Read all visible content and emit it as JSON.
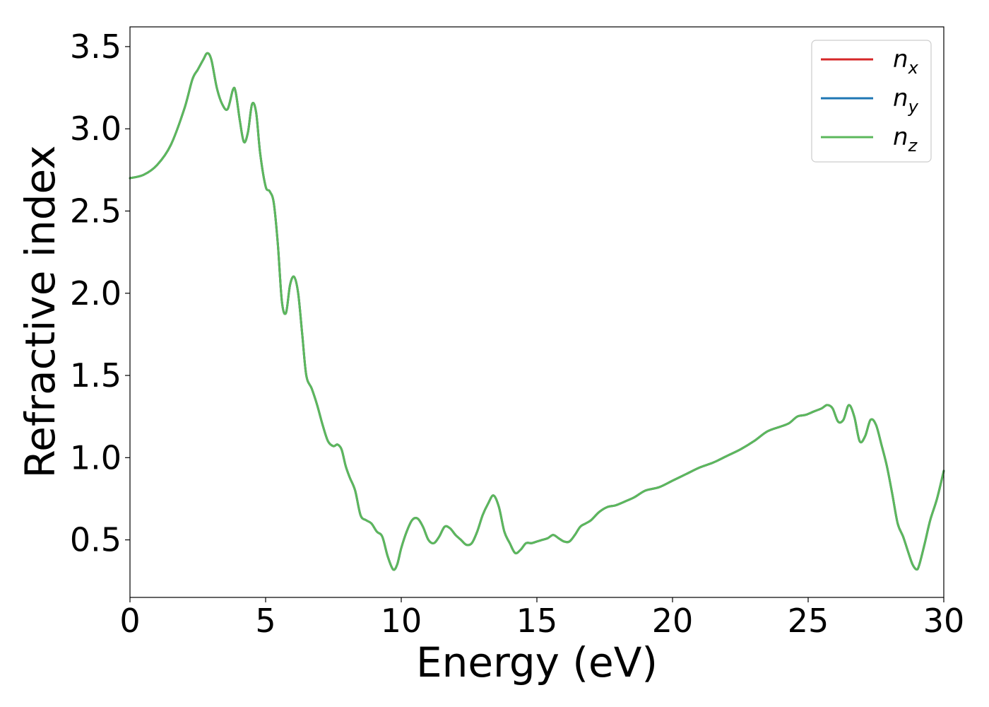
{
  "chart_data": {
    "type": "line",
    "title": "",
    "xlabel": "Energy (eV)",
    "ylabel": "Refractive index",
    "xlim": [
      0,
      30
    ],
    "ylim": [
      0.15,
      3.62
    ],
    "xticks": [
      0,
      5,
      10,
      15,
      20,
      25,
      30
    ],
    "xtick_labels": [
      "0",
      "5",
      "10",
      "15",
      "20",
      "25",
      "30"
    ],
    "yticks": [
      0.5,
      1.0,
      1.5,
      2.0,
      2.5,
      3.0,
      3.5
    ],
    "ytick_labels": [
      "0.5",
      "1.0",
      "1.5",
      "2.0",
      "2.5",
      "3.0",
      "3.5"
    ],
    "grid": false,
    "legend_position": "top-right",
    "x": [
      0,
      0.5,
      1.0,
      1.5,
      2.0,
      2.3,
      2.5,
      2.7,
      2.85,
      3.0,
      3.2,
      3.4,
      3.6,
      3.8,
      3.9,
      4.05,
      4.2,
      4.35,
      4.5,
      4.65,
      4.8,
      5.0,
      5.15,
      5.3,
      5.45,
      5.6,
      5.75,
      5.9,
      6.05,
      6.2,
      6.35,
      6.5,
      6.7,
      6.9,
      7.1,
      7.3,
      7.5,
      7.65,
      7.8,
      7.95,
      8.1,
      8.3,
      8.5,
      8.7,
      8.9,
      9.1,
      9.3,
      9.5,
      9.7,
      9.85,
      10.0,
      10.2,
      10.4,
      10.6,
      10.8,
      11.0,
      11.2,
      11.4,
      11.6,
      11.8,
      12.0,
      12.2,
      12.4,
      12.6,
      12.8,
      13.0,
      13.2,
      13.4,
      13.6,
      13.8,
      14.0,
      14.2,
      14.4,
      14.6,
      14.8,
      15.0,
      15.2,
      15.4,
      15.6,
      15.8,
      16.0,
      16.2,
      16.4,
      16.6,
      16.8,
      17.0,
      17.3,
      17.6,
      17.9,
      18.2,
      18.6,
      19.0,
      19.5,
      20.0,
      20.5,
      21.0,
      21.5,
      22.0,
      22.5,
      23.0,
      23.5,
      24.0,
      24.3,
      24.6,
      24.9,
      25.2,
      25.5,
      25.7,
      25.9,
      26.1,
      26.3,
      26.5,
      26.7,
      26.9,
      27.1,
      27.3,
      27.5,
      27.7,
      27.9,
      28.1,
      28.3,
      28.5,
      28.7,
      28.85,
      29.0,
      29.1,
      29.3,
      29.5,
      29.75,
      30.0
    ],
    "series": [
      {
        "name": "x",
        "color": "#d62728",
        "values": [
          2.7,
          2.72,
          2.78,
          2.9,
          3.12,
          3.3,
          3.36,
          3.42,
          3.46,
          3.42,
          3.25,
          3.15,
          3.12,
          3.24,
          3.22,
          3.05,
          2.92,
          2.98,
          3.15,
          3.1,
          2.85,
          2.65,
          2.62,
          2.55,
          2.3,
          1.95,
          1.88,
          2.05,
          2.1,
          2.0,
          1.75,
          1.5,
          1.42,
          1.32,
          1.2,
          1.1,
          1.07,
          1.08,
          1.05,
          0.95,
          0.88,
          0.8,
          0.65,
          0.62,
          0.6,
          0.55,
          0.52,
          0.4,
          0.32,
          0.35,
          0.45,
          0.55,
          0.62,
          0.63,
          0.58,
          0.5,
          0.48,
          0.52,
          0.58,
          0.57,
          0.53,
          0.5,
          0.47,
          0.48,
          0.55,
          0.65,
          0.72,
          0.77,
          0.7,
          0.55,
          0.48,
          0.42,
          0.44,
          0.48,
          0.48,
          0.49,
          0.5,
          0.51,
          0.53,
          0.51,
          0.49,
          0.49,
          0.53,
          0.58,
          0.6,
          0.62,
          0.67,
          0.7,
          0.71,
          0.73,
          0.76,
          0.8,
          0.82,
          0.86,
          0.9,
          0.94,
          0.97,
          1.01,
          1.05,
          1.1,
          1.16,
          1.19,
          1.21,
          1.25,
          1.26,
          1.28,
          1.3,
          1.32,
          1.3,
          1.22,
          1.23,
          1.32,
          1.25,
          1.1,
          1.13,
          1.23,
          1.2,
          1.08,
          0.95,
          0.78,
          0.6,
          0.52,
          0.42,
          0.35,
          0.32,
          0.35,
          0.48,
          0.62,
          0.75,
          0.92
        ]
      },
      {
        "name": "y",
        "color": "#1f77b4",
        "values": [
          2.7,
          2.72,
          2.78,
          2.9,
          3.12,
          3.3,
          3.36,
          3.42,
          3.46,
          3.42,
          3.25,
          3.15,
          3.12,
          3.24,
          3.22,
          3.05,
          2.92,
          2.98,
          3.15,
          3.1,
          2.85,
          2.65,
          2.62,
          2.55,
          2.3,
          1.95,
          1.88,
          2.05,
          2.1,
          2.0,
          1.75,
          1.5,
          1.42,
          1.32,
          1.2,
          1.1,
          1.07,
          1.08,
          1.05,
          0.95,
          0.88,
          0.8,
          0.65,
          0.62,
          0.6,
          0.55,
          0.52,
          0.4,
          0.32,
          0.35,
          0.45,
          0.55,
          0.62,
          0.63,
          0.58,
          0.5,
          0.48,
          0.52,
          0.58,
          0.57,
          0.53,
          0.5,
          0.47,
          0.48,
          0.55,
          0.65,
          0.72,
          0.77,
          0.7,
          0.55,
          0.48,
          0.42,
          0.44,
          0.48,
          0.48,
          0.49,
          0.5,
          0.51,
          0.53,
          0.51,
          0.49,
          0.49,
          0.53,
          0.58,
          0.6,
          0.62,
          0.67,
          0.7,
          0.71,
          0.73,
          0.76,
          0.8,
          0.82,
          0.86,
          0.9,
          0.94,
          0.97,
          1.01,
          1.05,
          1.1,
          1.16,
          1.19,
          1.21,
          1.25,
          1.26,
          1.28,
          1.3,
          1.32,
          1.3,
          1.22,
          1.23,
          1.32,
          1.25,
          1.1,
          1.13,
          1.23,
          1.2,
          1.08,
          0.95,
          0.78,
          0.6,
          0.52,
          0.42,
          0.35,
          0.32,
          0.35,
          0.48,
          0.62,
          0.75,
          0.92
        ]
      },
      {
        "name": "z",
        "color": "#5cb85c",
        "values": [
          2.7,
          2.72,
          2.78,
          2.9,
          3.12,
          3.3,
          3.36,
          3.42,
          3.46,
          3.42,
          3.25,
          3.15,
          3.12,
          3.24,
          3.22,
          3.05,
          2.92,
          2.98,
          3.15,
          3.1,
          2.85,
          2.65,
          2.62,
          2.55,
          2.3,
          1.95,
          1.88,
          2.05,
          2.1,
          2.0,
          1.75,
          1.5,
          1.42,
          1.32,
          1.2,
          1.1,
          1.07,
          1.08,
          1.05,
          0.95,
          0.88,
          0.8,
          0.65,
          0.62,
          0.6,
          0.55,
          0.52,
          0.4,
          0.32,
          0.35,
          0.45,
          0.55,
          0.62,
          0.63,
          0.58,
          0.5,
          0.48,
          0.52,
          0.58,
          0.57,
          0.53,
          0.5,
          0.47,
          0.48,
          0.55,
          0.65,
          0.72,
          0.77,
          0.7,
          0.55,
          0.48,
          0.42,
          0.44,
          0.48,
          0.48,
          0.49,
          0.5,
          0.51,
          0.53,
          0.51,
          0.49,
          0.49,
          0.53,
          0.58,
          0.6,
          0.62,
          0.67,
          0.7,
          0.71,
          0.73,
          0.76,
          0.8,
          0.82,
          0.86,
          0.9,
          0.94,
          0.97,
          1.01,
          1.05,
          1.1,
          1.16,
          1.19,
          1.21,
          1.25,
          1.26,
          1.28,
          1.3,
          1.32,
          1.3,
          1.22,
          1.23,
          1.32,
          1.25,
          1.1,
          1.13,
          1.23,
          1.2,
          1.08,
          0.95,
          0.78,
          0.6,
          0.52,
          0.42,
          0.35,
          0.32,
          0.35,
          0.48,
          0.62,
          0.75,
          0.92
        ]
      }
    ],
    "legend": [
      {
        "base": "n",
        "sub": "x",
        "color": "#d62728"
      },
      {
        "base": "n",
        "sub": "y",
        "color": "#1f77b4"
      },
      {
        "base": "n",
        "sub": "z",
        "color": "#5cb85c"
      }
    ]
  }
}
